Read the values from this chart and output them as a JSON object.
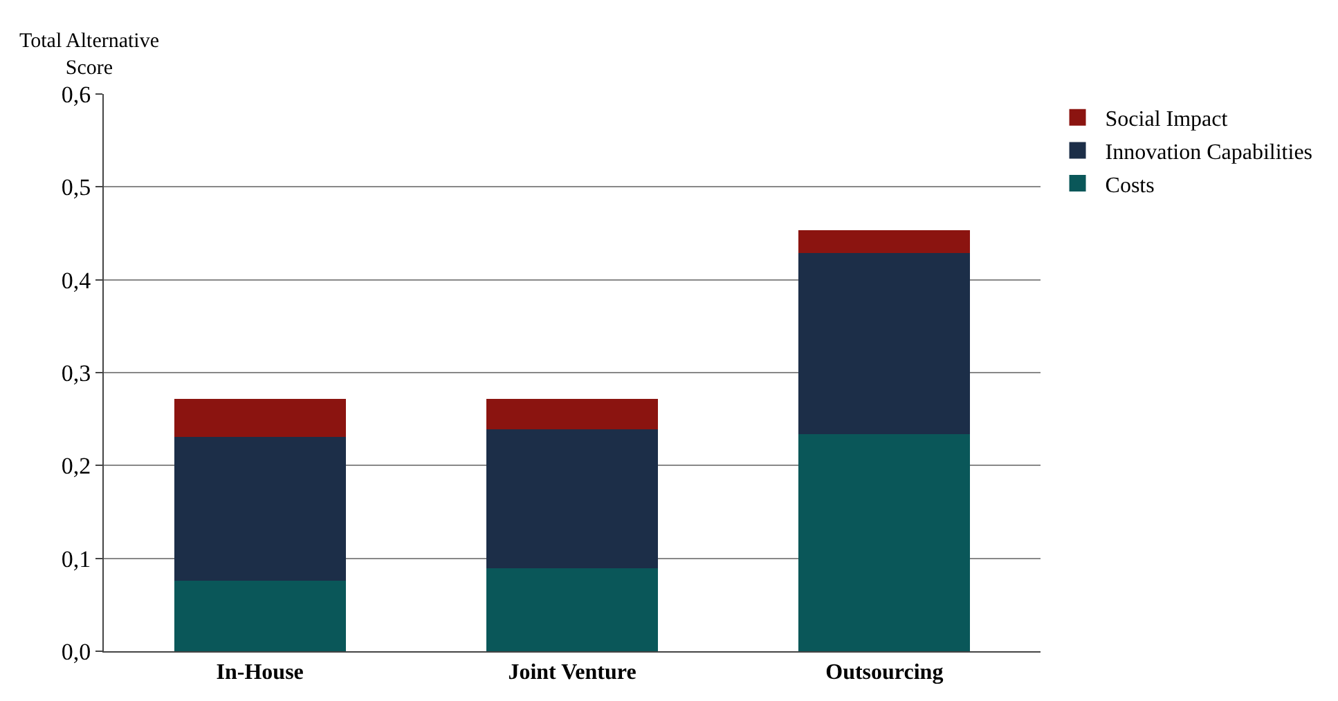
{
  "chart_data": {
    "type": "bar",
    "stacked": true,
    "ylabel": "Total Alternative Score",
    "categories": [
      "In-House",
      "Joint Venture",
      "Outsourcing"
    ],
    "series": [
      {
        "name": "Costs",
        "color": "#0a5759",
        "values": [
          0.076,
          0.089,
          0.234
        ]
      },
      {
        "name": "Innovation Capabilities",
        "color": "#1c2e48",
        "values": [
          0.155,
          0.15,
          0.195
        ]
      },
      {
        "name": "Social Impact",
        "color": "#8b1410",
        "values": [
          0.041,
          0.033,
          0.024
        ]
      }
    ],
    "ylim": [
      0,
      0.6
    ],
    "yticks": [
      {
        "value": 0,
        "label": "0,0"
      },
      {
        "value": 0.1,
        "label": "0,1"
      },
      {
        "value": 0.2,
        "label": "0,2"
      },
      {
        "value": 0.3,
        "label": "0,3"
      },
      {
        "value": 0.4,
        "label": "0,4"
      },
      {
        "value": 0.5,
        "label": "0,5"
      },
      {
        "value": 0.6,
        "label": "0,6"
      }
    ],
    "grid": "y",
    "legend": "top right"
  }
}
